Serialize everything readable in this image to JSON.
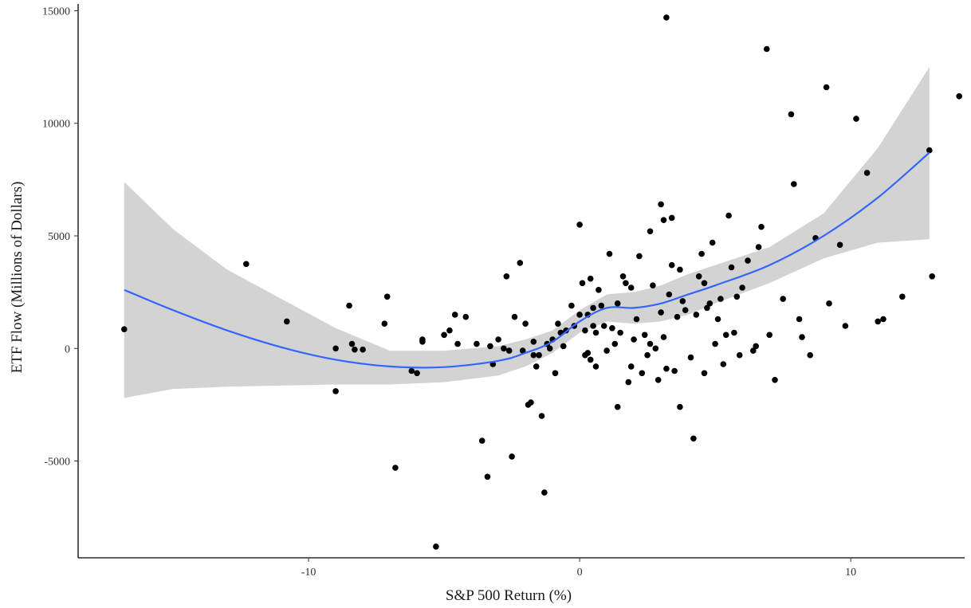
{
  "chart_data": {
    "type": "scatter",
    "title": "",
    "xlabel": "S&P 500 Return (%)",
    "ylabel": "ETF Flow (Millions of Dollars)",
    "xlim": [
      -18.5,
      14.2
    ],
    "ylim": [
      -9300,
      15300
    ],
    "x_ticks": [
      -10,
      0,
      10
    ],
    "y_ticks": [
      -5000,
      0,
      5000,
      10000,
      15000
    ],
    "x_tick_labels": [
      "-10",
      "0",
      "10"
    ],
    "y_tick_labels": [
      "-5000",
      "0",
      "5000",
      "10000",
      "15000"
    ],
    "grid": false,
    "legend": "none",
    "colors": {
      "points": "#000000",
      "smooth": "#3366ff",
      "band": "#d3d3d3",
      "axis": "#000000"
    },
    "series": [
      {
        "type": "scatter",
        "points": [
          [
            -16.8,
            850
          ],
          [
            -12.3,
            3750
          ],
          [
            -10.8,
            1200
          ],
          [
            -9.0,
            -1900
          ],
          [
            -9.0,
            0
          ],
          [
            -8.5,
            1900
          ],
          [
            -8.4,
            200
          ],
          [
            -8.3,
            -50
          ],
          [
            -8.0,
            -50
          ],
          [
            -7.2,
            1100
          ],
          [
            -7.1,
            2300
          ],
          [
            -6.8,
            -5300
          ],
          [
            -6.2,
            -1000
          ],
          [
            -6.0,
            -1100
          ],
          [
            -5.8,
            300
          ],
          [
            -5.8,
            400
          ],
          [
            -5.3,
            -8800
          ],
          [
            -5.0,
            600
          ],
          [
            -4.8,
            800
          ],
          [
            -4.6,
            1500
          ],
          [
            -4.5,
            200
          ],
          [
            -4.2,
            1400
          ],
          [
            -3.8,
            200
          ],
          [
            -3.6,
            -4100
          ],
          [
            -3.4,
            -5700
          ],
          [
            -3.3,
            100
          ],
          [
            -3.2,
            -700
          ],
          [
            -3.0,
            400
          ],
          [
            -2.8,
            0
          ],
          [
            -2.7,
            3200
          ],
          [
            -2.6,
            -100
          ],
          [
            -2.5,
            -4800
          ],
          [
            -2.4,
            1400
          ],
          [
            -2.2,
            3800
          ],
          [
            -2.1,
            -100
          ],
          [
            -2.0,
            1100
          ],
          [
            -1.9,
            -2500
          ],
          [
            -1.8,
            -2400
          ],
          [
            -1.7,
            300
          ],
          [
            -1.7,
            -300
          ],
          [
            -1.6,
            -800
          ],
          [
            -1.5,
            -300
          ],
          [
            -1.4,
            -3000
          ],
          [
            -1.3,
            -6400
          ],
          [
            -1.2,
            200
          ],
          [
            -1.1,
            0
          ],
          [
            -1.0,
            400
          ],
          [
            -0.9,
            -1100
          ],
          [
            -0.8,
            1100
          ],
          [
            -0.7,
            700
          ],
          [
            -0.6,
            100
          ],
          [
            -0.5,
            800
          ],
          [
            -0.3,
            1900
          ],
          [
            -0.2,
            1000
          ],
          [
            0.0,
            5500
          ],
          [
            0.0,
            1500
          ],
          [
            0.1,
            2900
          ],
          [
            0.2,
            800
          ],
          [
            0.2,
            -300
          ],
          [
            0.3,
            1500
          ],
          [
            0.3,
            -200
          ],
          [
            0.4,
            3100
          ],
          [
            0.4,
            -500
          ],
          [
            0.5,
            1800
          ],
          [
            0.5,
            1000
          ],
          [
            0.6,
            -800
          ],
          [
            0.6,
            700
          ],
          [
            0.7,
            2600
          ],
          [
            0.8,
            1900
          ],
          [
            0.9,
            1000
          ],
          [
            1.0,
            -100
          ],
          [
            1.1,
            4200
          ],
          [
            1.2,
            900
          ],
          [
            1.3,
            200
          ],
          [
            1.4,
            -2600
          ],
          [
            1.4,
            2000
          ],
          [
            1.5,
            700
          ],
          [
            1.6,
            3200
          ],
          [
            1.7,
            2900
          ],
          [
            1.8,
            -1500
          ],
          [
            1.9,
            -800
          ],
          [
            1.9,
            2700
          ],
          [
            2.0,
            400
          ],
          [
            2.1,
            1300
          ],
          [
            2.2,
            4100
          ],
          [
            2.3,
            -1100
          ],
          [
            2.4,
            600
          ],
          [
            2.5,
            -300
          ],
          [
            2.6,
            200
          ],
          [
            2.6,
            5200
          ],
          [
            2.7,
            2800
          ],
          [
            2.8,
            0
          ],
          [
            2.9,
            -1400
          ],
          [
            3.0,
            6400
          ],
          [
            3.0,
            1600
          ],
          [
            3.1,
            5700
          ],
          [
            3.1,
            500
          ],
          [
            3.2,
            -900
          ],
          [
            3.2,
            14700
          ],
          [
            3.3,
            2400
          ],
          [
            3.4,
            5800
          ],
          [
            3.4,
            3700
          ],
          [
            3.5,
            -1000
          ],
          [
            3.6,
            1400
          ],
          [
            3.7,
            3500
          ],
          [
            3.7,
            -2600
          ],
          [
            3.8,
            2100
          ],
          [
            3.9,
            1700
          ],
          [
            4.1,
            -400
          ],
          [
            4.2,
            -4000
          ],
          [
            4.3,
            1500
          ],
          [
            4.4,
            3200
          ],
          [
            4.5,
            4200
          ],
          [
            4.6,
            2900
          ],
          [
            4.6,
            -1100
          ],
          [
            4.7,
            1800
          ],
          [
            4.8,
            2000
          ],
          [
            4.9,
            4700
          ],
          [
            5.0,
            200
          ],
          [
            5.1,
            1300
          ],
          [
            5.2,
            2200
          ],
          [
            5.3,
            -700
          ],
          [
            5.4,
            600
          ],
          [
            5.5,
            5900
          ],
          [
            5.6,
            3600
          ],
          [
            5.7,
            700
          ],
          [
            5.8,
            2300
          ],
          [
            5.9,
            -300
          ],
          [
            6.0,
            2700
          ],
          [
            6.2,
            3900
          ],
          [
            6.4,
            -100
          ],
          [
            6.5,
            100
          ],
          [
            6.6,
            4500
          ],
          [
            6.7,
            5400
          ],
          [
            6.9,
            13300
          ],
          [
            7.0,
            600
          ],
          [
            7.2,
            -1400
          ],
          [
            7.5,
            2200
          ],
          [
            7.8,
            10400
          ],
          [
            7.9,
            7300
          ],
          [
            8.1,
            1300
          ],
          [
            8.2,
            500
          ],
          [
            8.5,
            -300
          ],
          [
            8.7,
            4900
          ],
          [
            9.1,
            11600
          ],
          [
            9.2,
            2000
          ],
          [
            9.6,
            4600
          ],
          [
            9.8,
            1000
          ],
          [
            10.2,
            10200
          ],
          [
            10.6,
            7800
          ],
          [
            11.0,
            1200
          ],
          [
            11.2,
            1300
          ],
          [
            11.9,
            2300
          ],
          [
            12.9,
            8800
          ],
          [
            13.0,
            3200
          ],
          [
            14.0,
            11200
          ]
        ]
      },
      {
        "type": "smooth",
        "x": [
          -16.8,
          -15,
          -13,
          -11,
          -9,
          -7,
          -5,
          -3,
          -2,
          -1,
          0,
          1,
          2,
          3,
          4,
          5,
          7,
          9,
          11,
          12.9
        ],
        "y": [
          2600,
          1700,
          800,
          50,
          -500,
          -800,
          -830,
          -550,
          -200,
          300,
          1200,
          1800,
          1800,
          2000,
          2400,
          2800,
          3700,
          5000,
          6700,
          8700
        ],
        "lower": [
          -2200,
          -1800,
          -1700,
          -1650,
          -1600,
          -1600,
          -1500,
          -1200,
          -800,
          -200,
          700,
          1200,
          1100,
          1200,
          1500,
          2000,
          2900,
          4000,
          4700,
          4850
        ],
        "upper": [
          7400,
          5300,
          3500,
          2200,
          900,
          -100,
          -100,
          100,
          400,
          800,
          1700,
          2400,
          2500,
          2800,
          3300,
          3700,
          4500,
          6000,
          8900,
          12500
        ]
      }
    ]
  }
}
